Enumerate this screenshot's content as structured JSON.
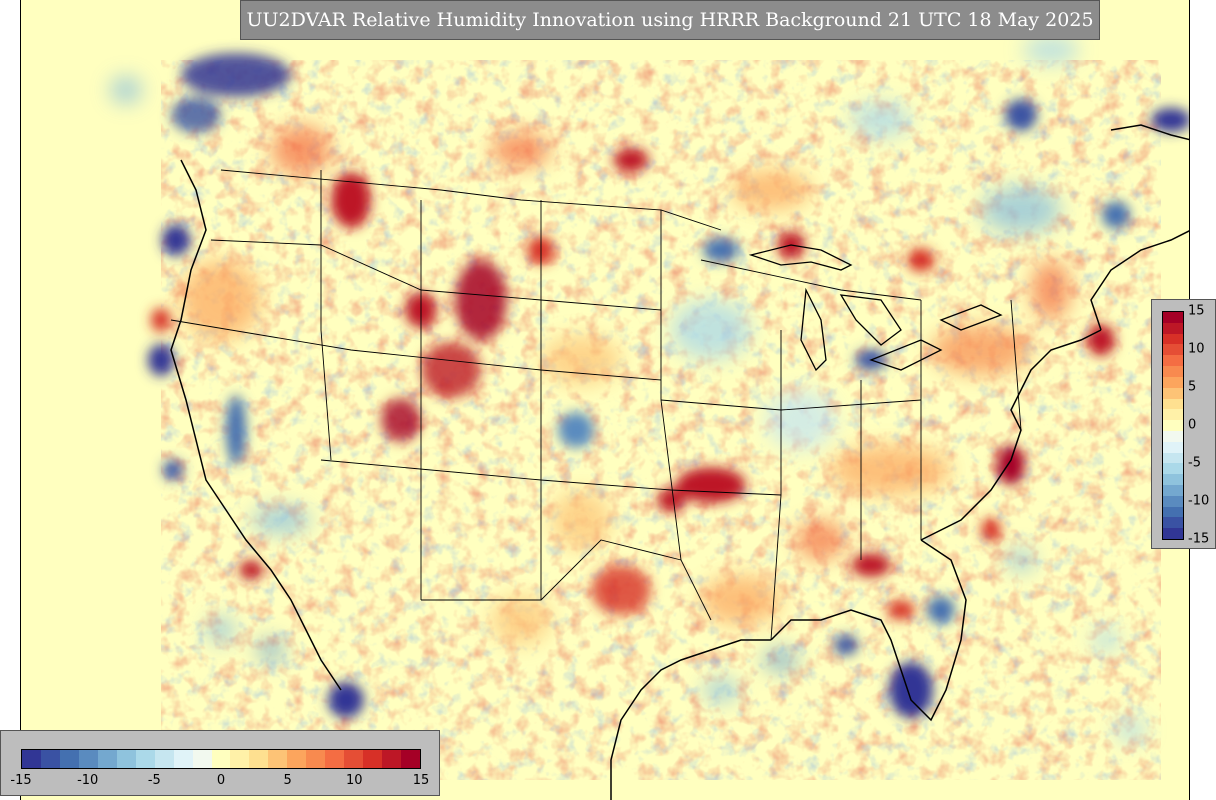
{
  "title": "UU2DVAR Relative Humidity Innovation using HRRR Background 21 UTC 18 May 2025",
  "colorbar": {
    "min": -15,
    "max": 15,
    "horizontal_ticks": [
      "-15",
      "-10",
      "-5",
      "0",
      "5",
      "10",
      "15"
    ],
    "vertical_ticks": [
      "15",
      "10",
      "5",
      "0",
      "-5",
      "-10",
      "-15"
    ],
    "colors": [
      "#313695",
      "#3a52a3",
      "#4470b0",
      "#5a8bbf",
      "#74a8cf",
      "#8fc3dd",
      "#abd9e9",
      "#c6e6f0",
      "#e0f3f8",
      "#f2f9ef",
      "#ffffbf",
      "#fff1a8",
      "#fee090",
      "#fdc376",
      "#fca55d",
      "#f88a4f",
      "#f46d43",
      "#e54e35",
      "#d73027",
      "#bd1726",
      "#a50026"
    ]
  },
  "map": {
    "background_color": "#ffffbf",
    "projection": "Lambert conformal conic (CONUS)",
    "region": "Contiguous United States, southern Canada, northern Mexico"
  }
}
